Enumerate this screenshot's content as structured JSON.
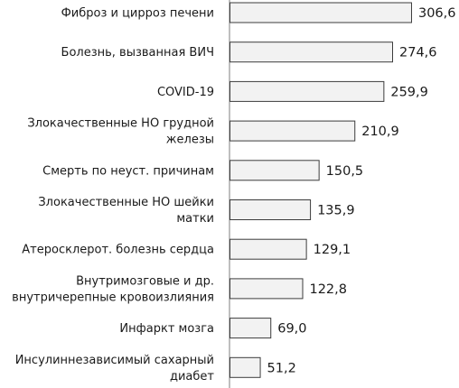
{
  "chart_data": {
    "type": "bar",
    "orientation": "horizontal",
    "title": "",
    "xlabel": "",
    "ylabel": "",
    "grid": false,
    "categories": [
      [
        "Фиброз и цирроз печени"
      ],
      [
        "Болезнь, вызванная ВИЧ"
      ],
      [
        "COVID-19"
      ],
      [
        "Злокачественные НО грудной",
        "железы"
      ],
      [
        "Смерть по неуст. причинам"
      ],
      [
        "Злокачественные НО шейки",
        "матки"
      ],
      [
        "Атеросклерот. болезнь сердца"
      ],
      [
        "Внутримозговые и др.",
        "внутричерепные кровоизлияния"
      ],
      [
        "Инфаркт мозга"
      ],
      [
        "Инсулиннезависимый сахарный",
        "диабет"
      ]
    ],
    "values": [
      306.6,
      274.6,
      259.9,
      210.9,
      150.5,
      135.9,
      129.1,
      122.8,
      69.0,
      51.2
    ],
    "value_labels": [
      "306,6",
      "274,6",
      "259,9",
      "210,9",
      "150,5",
      "135,9",
      "129,1",
      "122,8",
      "69,0",
      "51,2"
    ],
    "xlim": [
      0,
      330
    ],
    "colors": {
      "bar_fill": "#f2f2f2",
      "bar_stroke": "#3c3c3c",
      "axis": "#7f7f7f"
    }
  }
}
